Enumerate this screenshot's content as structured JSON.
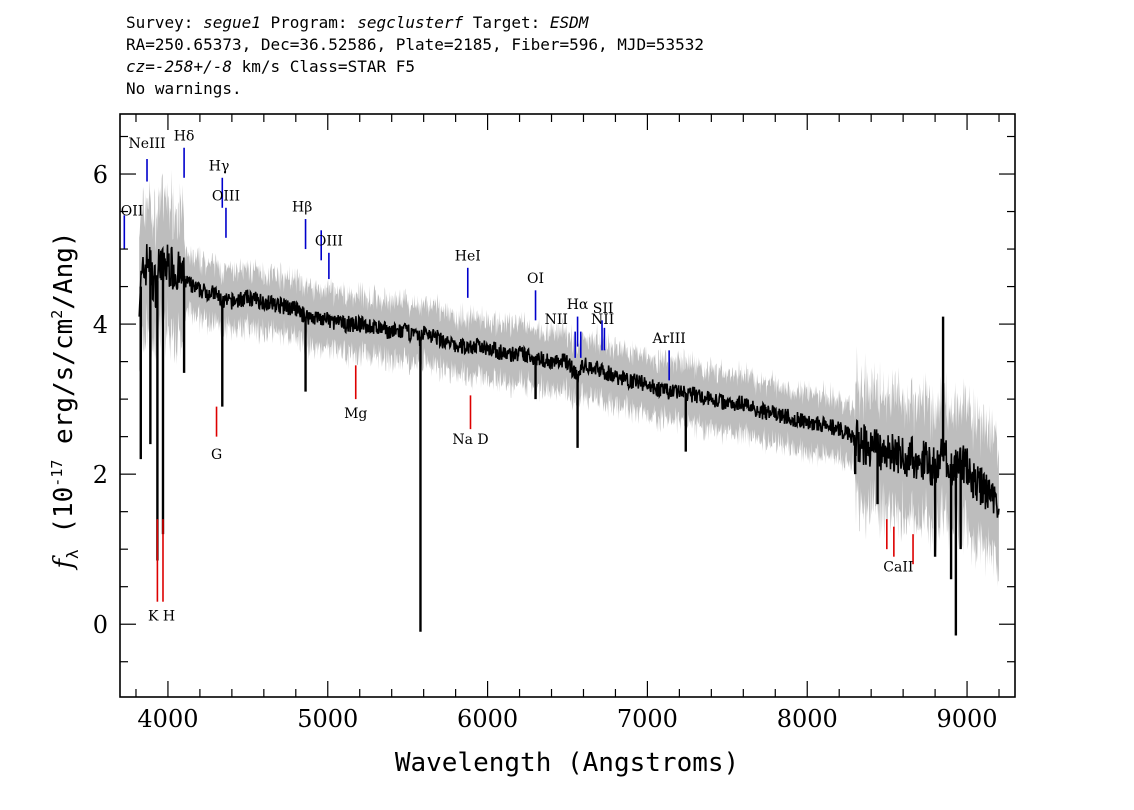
{
  "header": {
    "survey_label": "Survey: ",
    "survey": "segue1",
    "program_label": " Program: ",
    "program": "segclusterf",
    "target_label": " Target: ",
    "target": "ESDM",
    "coords": "RA=250.65373, Dec=36.52586, Plate=2185, Fiber=596, MJD=53532",
    "cz_label": "cz=",
    "cz_value": "-258+/-8",
    "cz_unit": " km/s Class=STAR F5",
    "warnings": "No warnings."
  },
  "colors": {
    "flux": "#000000",
    "error": "#bdbdbd",
    "emission": "#0000cc",
    "absorption": "#dd0000"
  },
  "chart_data": {
    "type": "line",
    "xlabel": "Wavelength (Angstroms)",
    "ylabel_prefix": "f",
    "ylabel_sub": "λ",
    "ylabel_main": " (10",
    "ylabel_sup": "-17",
    "ylabel_tail": " erg/s/cm",
    "ylabel_sup2": "2",
    "ylabel_end": "/Ang)",
    "xlim": [
      3700,
      9300
    ],
    "ylim": [
      -0.97,
      6.8
    ],
    "x_ticks": [
      4000,
      5000,
      6000,
      7000,
      8000,
      9000
    ],
    "y_ticks": [
      0,
      2,
      4,
      6
    ],
    "x_tick_labels": [
      "4000",
      "5000",
      "6000",
      "7000",
      "8000",
      "9000"
    ],
    "y_tick_labels": [
      "0",
      "2",
      "4",
      "6"
    ],
    "series": [
      {
        "x": [
          3820,
          3850,
          3880,
          3900,
          3930,
          3950,
          3970,
          4000,
          4050,
          4100,
          4150,
          4200,
          4300,
          4340,
          4400,
          4500,
          4600,
          4700,
          4800,
          4861,
          4900,
          5000,
          5100,
          5200,
          5300,
          5400,
          5500,
          5580,
          5600,
          5700,
          5800,
          5900,
          6000,
          6100,
          6200,
          6300,
          6400,
          6500,
          6563,
          6600,
          6700,
          6800,
          6900,
          7000,
          7100,
          7200,
          7300,
          7400,
          7500,
          7600,
          7700,
          7800,
          7900,
          8000,
          8100,
          8200,
          8300,
          8400,
          8500,
          8600,
          8700,
          8800,
          8850,
          8900,
          8950,
          9000,
          9050,
          9100,
          9150,
          9200
        ],
        "y": [
          4.4,
          4.7,
          4.9,
          4.6,
          4.5,
          4.9,
          4.7,
          4.8,
          4.7,
          4.6,
          4.5,
          4.45,
          4.4,
          4.3,
          4.3,
          4.35,
          4.3,
          4.25,
          4.2,
          4.1,
          4.1,
          4.05,
          4.0,
          4.0,
          3.95,
          3.9,
          3.9,
          3.8,
          3.9,
          3.8,
          3.7,
          3.7,
          3.7,
          3.6,
          3.6,
          3.55,
          3.5,
          3.5,
          3.3,
          3.45,
          3.4,
          3.3,
          3.25,
          3.2,
          3.1,
          3.1,
          3.05,
          3.0,
          2.95,
          2.95,
          2.85,
          2.8,
          2.75,
          2.7,
          2.65,
          2.6,
          2.45,
          2.35,
          2.3,
          2.25,
          2.2,
          2.1,
          2.3,
          2.0,
          2.2,
          2.1,
          1.9,
          1.8,
          1.7,
          1.6
        ]
      }
    ],
    "absorption_features": [
      {
        "x": 3934,
        "y": 1.4,
        "y0": 0.3
      },
      {
        "x": 3969,
        "y": 1.4,
        "y0": 0.3
      },
      {
        "x": 4304,
        "y": 2.9,
        "y0": 2.5
      },
      {
        "x": 5175,
        "y": 3.45,
        "y0": 3.0
      },
      {
        "x": 5893,
        "y": 3.05,
        "y0": 2.6
      },
      {
        "x": 8498,
        "y": 1.4,
        "y0": 1.0
      },
      {
        "x": 8542,
        "y": 1.3,
        "y0": 0.9
      },
      {
        "x": 8662,
        "y": 1.2,
        "y0": 0.8
      }
    ],
    "absorption_labels": [
      {
        "text": "K H",
        "x": 3960,
        "y": 0.05
      },
      {
        "text": "G",
        "x": 4304,
        "y": 2.2
      },
      {
        "text": "Mg",
        "x": 5175,
        "y": 2.75
      },
      {
        "text": "Na D",
        "x": 5893,
        "y": 2.4
      },
      {
        "text": "CaII",
        "x": 8570,
        "y": 0.7
      }
    ],
    "emission_features": [
      {
        "x": 3727,
        "y": 5.45,
        "y0": 5.0
      },
      {
        "x": 3869,
        "y": 6.2,
        "y0": 5.9
      },
      {
        "x": 4101,
        "y": 6.35,
        "y0": 5.95
      },
      {
        "x": 4340,
        "y": 5.95,
        "y0": 5.55
      },
      {
        "x": 4363,
        "y": 5.55,
        "y0": 5.15
      },
      {
        "x": 4861,
        "y": 5.4,
        "y0": 5.0
      },
      {
        "x": 4959,
        "y": 5.25,
        "y0": 4.85
      },
      {
        "x": 5007,
        "y": 4.95,
        "y0": 4.6
      },
      {
        "x": 5876,
        "y": 4.75,
        "y0": 4.35
      },
      {
        "x": 6300,
        "y": 4.45,
        "y0": 4.05
      },
      {
        "x": 6548,
        "y": 3.9,
        "y0": 3.55
      },
      {
        "x": 6563,
        "y": 4.1,
        "y0": 3.7
      },
      {
        "x": 6583,
        "y": 3.9,
        "y0": 3.55
      },
      {
        "x": 6716,
        "y": 4.05,
        "y0": 3.65
      },
      {
        "x": 6731,
        "y": 3.95,
        "y0": 3.65
      },
      {
        "x": 7136,
        "y": 3.65,
        "y0": 3.25
      }
    ],
    "emission_labels": [
      {
        "text": "OII",
        "x": 3727,
        "y": 5.45
      },
      {
        "text": "NeIII",
        "x": 3869,
        "y": 6.35
      },
      {
        "text": "Hδ",
        "x": 4101,
        "y": 6.45
      },
      {
        "text": "Hγ",
        "x": 4320,
        "y": 6.05
      },
      {
        "text": "OIII",
        "x": 4363,
        "y": 5.65
      },
      {
        "text": "Hβ",
        "x": 4840,
        "y": 5.5
      },
      {
        "text": "OIII",
        "x": 5007,
        "y": 5.05
      },
      {
        "text": "HeI",
        "x": 5876,
        "y": 4.85
      },
      {
        "text": "OI",
        "x": 6300,
        "y": 4.55
      },
      {
        "text": "NII",
        "x": 6430,
        "y": 4.0
      },
      {
        "text": "Hα",
        "x": 6563,
        "y": 4.2
      },
      {
        "text": "SII",
        "x": 6723,
        "y": 4.15
      },
      {
        "text": "NII",
        "x": 6720,
        "y": 4.0
      },
      {
        "text": "ArIII",
        "x": 7136,
        "y": 3.75
      }
    ]
  }
}
